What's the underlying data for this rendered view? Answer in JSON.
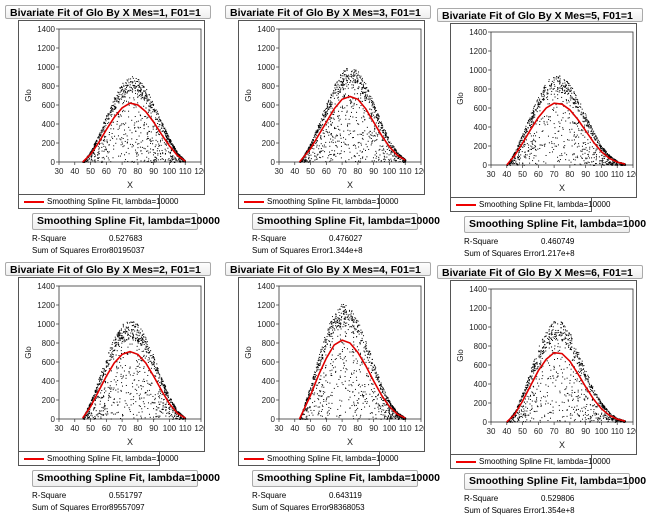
{
  "legend_label": "Smoothing Spline Fit, lambda=10000",
  "stats_title": "Smoothing Spline Fit, lambda=10000",
  "r_square_label": "R-Square",
  "sse_label": "Sum of Squares Error",
  "colors": {
    "spline": "#e00000",
    "points": "#000000"
  },
  "chart_data": [
    {
      "type": "scatter",
      "title": "Bivariate Fit of Glo By X Mes=1, F01=1",
      "xlabel": "X",
      "ylabel": "Glo",
      "xlim": [
        30,
        120
      ],
      "ylim": [
        0,
        1400
      ],
      "xticks": [
        30,
        40,
        50,
        60,
        70,
        80,
        90,
        100,
        110,
        120
      ],
      "yticks": [
        0,
        200,
        400,
        600,
        800,
        1000,
        1200,
        1400
      ],
      "r_square": "0.527683",
      "sse": "80195037",
      "spline": {
        "x": [
          45,
          50,
          55,
          60,
          65,
          70,
          75,
          80,
          85,
          90,
          95,
          100,
          105,
          110
        ],
        "y": [
          0,
          80,
          200,
          340,
          470,
          570,
          620,
          600,
          530,
          420,
          290,
          170,
          70,
          10
        ]
      }
    },
    {
      "type": "scatter",
      "title": "Bivariate Fit of Glo By X Mes=3, F01=1",
      "xlabel": "X",
      "ylabel": "Glo",
      "xlim": [
        30,
        120
      ],
      "ylim": [
        0,
        1400
      ],
      "xticks": [
        30,
        40,
        50,
        60,
        70,
        80,
        90,
        100,
        110,
        120
      ],
      "yticks": [
        0,
        200,
        400,
        600,
        800,
        1000,
        1200,
        1400
      ],
      "r_square": "0.476027",
      "sse": "1.344e+8",
      "spline": {
        "x": [
          43,
          50,
          55,
          60,
          65,
          70,
          75,
          80,
          85,
          90,
          95,
          100,
          105,
          110
        ],
        "y": [
          0,
          140,
          280,
          420,
          560,
          660,
          690,
          660,
          560,
          420,
          280,
          160,
          70,
          20
        ]
      }
    },
    {
      "type": "scatter",
      "title": "Bivariate Fit of Glo By X Mes=5, F01=1",
      "xlabel": "X",
      "ylabel": "Glo",
      "xlim": [
        30,
        120
      ],
      "ylim": [
        0,
        1400
      ],
      "xticks": [
        30,
        40,
        50,
        60,
        70,
        80,
        90,
        100,
        110,
        120
      ],
      "yticks": [
        0,
        200,
        400,
        600,
        800,
        1000,
        1200,
        1400
      ],
      "r_square": "0.460749",
      "sse": "1.217e+8",
      "spline": {
        "x": [
          40,
          45,
          50,
          55,
          60,
          65,
          70,
          75,
          80,
          85,
          90,
          95,
          100,
          105,
          110,
          115
        ],
        "y": [
          0,
          100,
          230,
          370,
          500,
          600,
          650,
          640,
          580,
          480,
          360,
          240,
          140,
          70,
          30,
          10
        ]
      }
    },
    {
      "type": "scatter",
      "title": "Bivariate Fit of Glo By X Mes=2, F01=1",
      "xlabel": "X",
      "ylabel": "Glo",
      "xlim": [
        30,
        120
      ],
      "ylim": [
        0,
        1400
      ],
      "xticks": [
        30,
        40,
        50,
        60,
        70,
        80,
        90,
        100,
        110,
        120
      ],
      "yticks": [
        0,
        200,
        400,
        600,
        800,
        1000,
        1200,
        1400
      ],
      "r_square": "0.551797",
      "sse": "89557097",
      "spline": {
        "x": [
          45,
          50,
          55,
          60,
          65,
          70,
          75,
          80,
          85,
          90,
          95,
          100,
          105,
          110
        ],
        "y": [
          10,
          130,
          290,
          450,
          590,
          680,
          710,
          680,
          590,
          450,
          300,
          160,
          60,
          10
        ]
      }
    },
    {
      "type": "scatter",
      "title": "Bivariate Fit of Glo By X Mes=4, F01=1",
      "xlabel": "X",
      "ylabel": "Glo",
      "xlim": [
        30,
        120
      ],
      "ylim": [
        0,
        1400
      ],
      "xticks": [
        30,
        40,
        50,
        60,
        70,
        80,
        90,
        100,
        110,
        120
      ],
      "yticks": [
        0,
        200,
        400,
        600,
        800,
        1000,
        1200,
        1400
      ],
      "r_square": "0.643119",
      "sse": "98368053",
      "spline": {
        "x": [
          43,
          50,
          55,
          60,
          65,
          70,
          75,
          80,
          85,
          90,
          95,
          100,
          105,
          110
        ],
        "y": [
          0,
          250,
          460,
          640,
          780,
          830,
          800,
          700,
          560,
          400,
          250,
          130,
          50,
          10
        ]
      }
    },
    {
      "type": "scatter",
      "title": "Bivariate Fit of Glo By X Mes=6, F01=1",
      "xlabel": "X",
      "ylabel": "Glo",
      "xlim": [
        30,
        120
      ],
      "ylim": [
        0,
        1400
      ],
      "xticks": [
        30,
        40,
        50,
        60,
        70,
        80,
        90,
        100,
        110,
        120
      ],
      "yticks": [
        0,
        200,
        400,
        600,
        800,
        1000,
        1200,
        1400
      ],
      "r_square": "0.529806",
      "sse": "1.354e+8",
      "spline": {
        "x": [
          40,
          45,
          50,
          55,
          60,
          65,
          70,
          75,
          80,
          85,
          90,
          95,
          100,
          105,
          110,
          115
        ],
        "y": [
          0,
          80,
          220,
          380,
          540,
          660,
          730,
          720,
          640,
          510,
          370,
          240,
          140,
          70,
          30,
          10
        ]
      }
    }
  ]
}
